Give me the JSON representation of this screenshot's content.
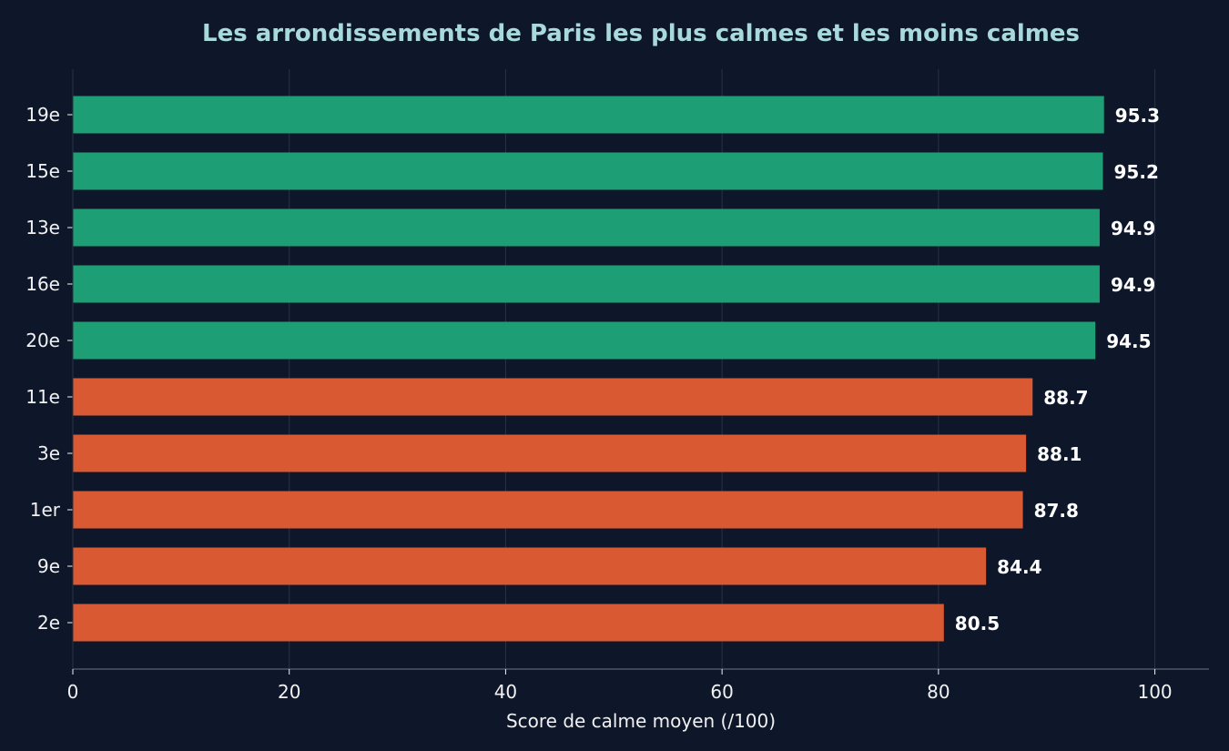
{
  "chart_data": {
    "type": "bar",
    "orientation": "horizontal",
    "title": "Les arrondissements de Paris les plus calmes et les moins calmes",
    "xlabel": "Score de calme moyen (/100)",
    "ylabel": "",
    "xlim": [
      0,
      105
    ],
    "xticks": [
      0,
      20,
      40,
      60,
      80,
      100
    ],
    "xtick_labels": [
      "0",
      "20",
      "40",
      "60",
      "80",
      "100"
    ],
    "grid": "vertical",
    "categories": [
      "19e",
      "15e",
      "13e",
      "16e",
      "20e",
      "11e",
      "3e",
      "1er",
      "9e",
      "2e"
    ],
    "values": [
      95.3,
      95.2,
      94.9,
      94.9,
      94.5,
      88.7,
      88.1,
      87.8,
      84.4,
      80.5
    ],
    "value_labels": [
      "95.3",
      "95.2",
      "94.9",
      "94.9",
      "94.5",
      "88.7",
      "88.1",
      "87.8",
      "84.4",
      "80.5"
    ],
    "bar_groups": [
      "calm",
      "calm",
      "calm",
      "calm",
      "calm",
      "noisy",
      "noisy",
      "noisy",
      "noisy",
      "noisy"
    ]
  },
  "colors": {
    "background": "#0e162a",
    "title": "#a8dadc",
    "text": "#f1f1f1",
    "grid": "#2a3145",
    "axis": "#4d5568",
    "calm": "#1d9e75",
    "noisy": "#d95a32"
  }
}
